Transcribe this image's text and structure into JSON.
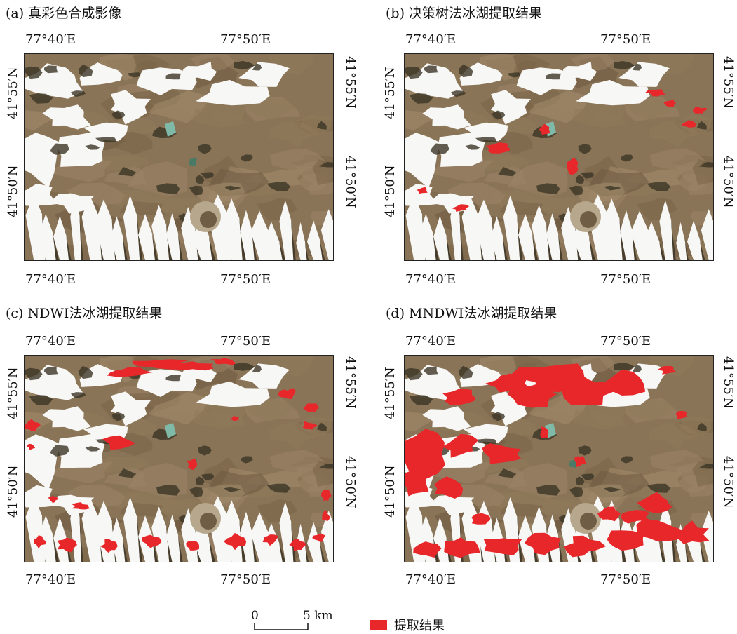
{
  "panels": [
    {
      "id": "a",
      "title": "(a) 真彩色合成影像",
      "overlay": "none"
    },
    {
      "id": "b",
      "title": "(b) 决策树法冰湖提取结果",
      "overlay": "lakes"
    },
    {
      "id": "c",
      "title": "(c) NDWI法冰湖提取结果",
      "overlay": "ndwi"
    },
    {
      "id": "d",
      "title": "(d) MNDWI法冰湖提取结果",
      "overlay": "mndwi"
    }
  ],
  "coords": {
    "lon_west": "77°40′E",
    "lon_east": "77°50′E",
    "lat_north": "41°55′N",
    "lat_south": "41°50′N"
  },
  "scale_bar": {
    "zero": "0",
    "end": "5 km"
  },
  "legend": {
    "label": "提取结果",
    "color": "#e8272b"
  },
  "colors": {
    "terrain": "#8a7457",
    "snow": "#f7f7f5",
    "shadow": "#3b3426",
    "extraction": "#e8272b",
    "lake": "#7fb9a8"
  }
}
